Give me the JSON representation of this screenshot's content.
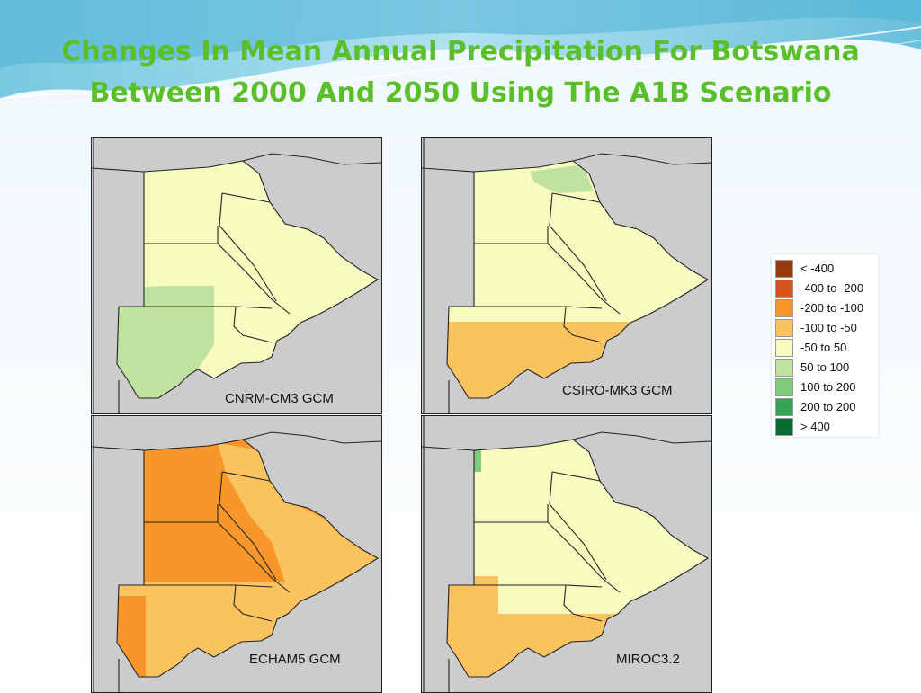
{
  "title": {
    "line1": "Changes In Mean Annual Precipitation For Botswana",
    "line2": "Between 2000 And 2050 Using The A1B Scenario"
  },
  "colors": {
    "title": "#5bbf29",
    "outside": "#cccccc",
    "lt_neg400": "#943a0c",
    "neg400_neg200": "#d9531e",
    "neg200_neg100": "#f7962a",
    "neg100_neg50": "#fbc35f",
    "neg50_50": "#f7fbbf",
    "pos50_100": "#bfe39e",
    "pos100_200": "#7ccc7a",
    "pos200_200": "#35a455",
    "gt400": "#066b2e"
  },
  "maps": [
    {
      "label": "CNRM-CM3 GCM"
    },
    {
      "label": "CSIRO-MK3 GCM"
    },
    {
      "label": "ECHAM5 GCM"
    },
    {
      "label": "MIROC3.2"
    }
  ],
  "legend": [
    {
      "label": "< -400",
      "color": "#943a0c"
    },
    {
      "label": "-400 to -200",
      "color": "#d9531e"
    },
    {
      "label": "-200 to -100",
      "color": "#f7962a"
    },
    {
      "label": "-100 to -50",
      "color": "#fbc35f"
    },
    {
      "label": "-50 to 50",
      "color": "#f7fbbf"
    },
    {
      "label": "50 to 100",
      "color": "#bfe39e"
    },
    {
      "label": "100 to 200",
      "color": "#7ccc7a"
    },
    {
      "label": "200 to 200",
      "color": "#35a455"
    },
    {
      "label": "> 400",
      "color": "#066b2e"
    }
  ]
}
